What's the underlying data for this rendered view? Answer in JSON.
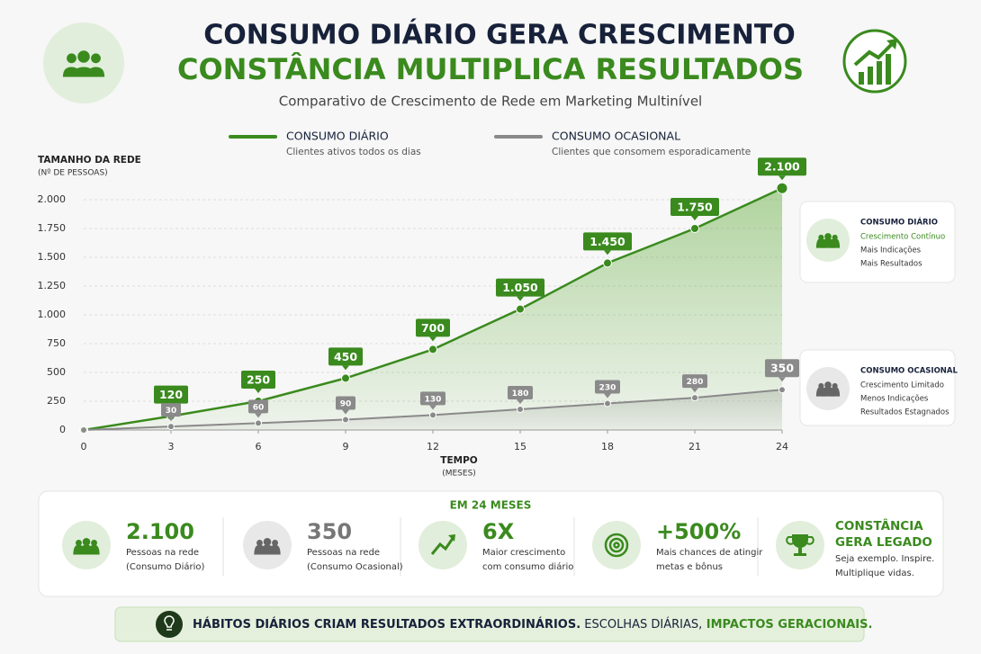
{
  "header": {
    "title": "CONSUMO DIÁRIO GERA CRESCIMENTO",
    "title2": "CONSTÂNCIA MULTIPLICA RESULTADOS",
    "subtitle": "Comparativo de Crescimento de Rede em Marketing Multinível"
  },
  "chart_data": {
    "type": "line",
    "y_label": "TAMANHO DA REDE",
    "y_label_sub": "(Nº DE PESSOAS)",
    "x_label": "TEMPO",
    "x_label_sub": "(MESES)",
    "x": [
      0,
      3,
      6,
      9,
      12,
      15,
      18,
      21,
      24
    ],
    "series": [
      {
        "name": "CONSUMO DIÁRIO",
        "description": "Clientes ativos todos os dias",
        "color": "#3a8a1e",
        "values": [
          0,
          120,
          250,
          450,
          700,
          1050,
          1450,
          1750,
          2100
        ],
        "value_labels": [
          null,
          "120",
          "250",
          "450",
          "700",
          "1.050",
          "1.450",
          "1.750",
          "2.100"
        ]
      },
      {
        "name": "CONSUMO OCASIONAL",
        "description": "Clientes que consomem esporadicamente",
        "color": "#8a8a8a",
        "values": [
          0,
          30,
          60,
          90,
          130,
          180,
          230,
          280,
          350
        ],
        "value_labels": [
          null,
          "30",
          "60",
          "90",
          "130",
          "180",
          "230",
          "280",
          "350"
        ]
      }
    ],
    "xlim": [
      0,
      24
    ],
    "xticks": [
      0,
      3,
      6,
      9,
      12,
      15,
      18,
      21,
      24
    ],
    "ylim": [
      0,
      2250
    ],
    "yticks": [
      0,
      250,
      500,
      750,
      {
        "value": 1000,
        "label": "1.000"
      },
      {
        "value": 1250,
        "label": "1.250"
      },
      {
        "value": 1500,
        "label": "1.500"
      },
      {
        "value": 1750,
        "label": "1.750"
      },
      {
        "value": 2000,
        "label": "2.000"
      }
    ],
    "grid": true
  },
  "cards": [
    {
      "title": "CONSUMO DIÁRIO",
      "lines": [
        "Crescimento Contínuo",
        "Mais Indicações",
        "Mais Resultados"
      ]
    },
    {
      "title": "CONSUMO OCASIONAL",
      "lines": [
        "Crescimento Limitado",
        "Menos Indicações",
        "Resultados Estagnados"
      ]
    }
  ],
  "stats": {
    "heading": "EM 24 MESES",
    "items": [
      {
        "value": "2.100",
        "lines": [
          "Pessoas na rede",
          "(Consumo Diário)"
        ]
      },
      {
        "value": "350",
        "lines": [
          "Pessoas na rede",
          "(Consumo Ocasional)"
        ]
      },
      {
        "value": "6X",
        "lines": [
          "Maior crescimento",
          "com consumo diário"
        ]
      },
      {
        "value": "+500%",
        "lines": [
          "Mais chances de atingir",
          "metas e bônus"
        ]
      },
      {
        "heading": [
          "CONSTÂNCIA",
          "GERA LEGADO"
        ],
        "lines": [
          "Seja exemplo. Inspire.",
          "Multiplique vidas."
        ]
      }
    ]
  },
  "footer": {
    "parts": [
      "HÁBITOS DIÁRIOS CRIAM RESULTADOS EXTRAORDINÁRIOS.",
      " ESCOLHAS DIÁRIAS,",
      " IMPACTOS GERACIONAIS."
    ]
  }
}
